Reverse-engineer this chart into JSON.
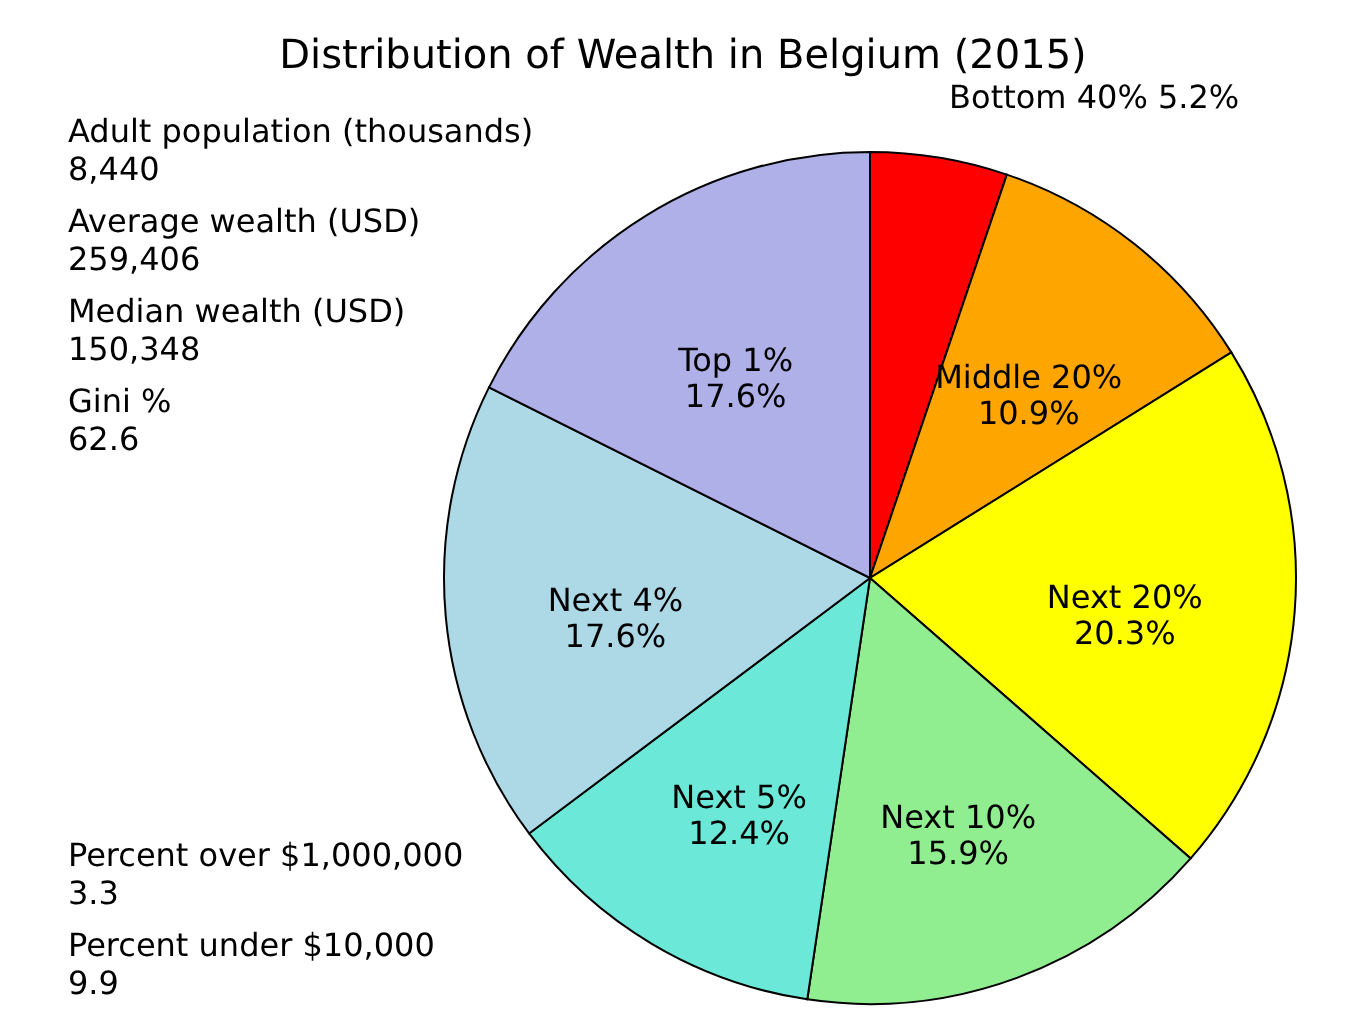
{
  "chart_data": {
    "type": "pie",
    "title": "Distribution of Wealth in Belgium (2015)",
    "categories": [
      "Bottom 40%",
      "Middle 20%",
      "Next 20%",
      "Next 10%",
      "Next 5%",
      "Next 4%",
      "Top 1%"
    ],
    "values": [
      5.2,
      10.9,
      20.3,
      15.9,
      12.4,
      17.6,
      17.6
    ],
    "value_labels": [
      "5.2%",
      "10.9%",
      "20.3%",
      "15.9%",
      "12.4%",
      "17.6%",
      "17.6%"
    ],
    "colors": [
      "#ff0000",
      "#ffa500",
      "#ffff00",
      "#90ee90",
      "#6be8d8",
      "#add8e6",
      "#b0b0e8"
    ],
    "annotations": [
      "Adult population (thousands)\n8,440",
      "Average wealth (USD)\n259,406",
      "Median wealth (USD)\n150,348",
      "Gini %\n62.6",
      "Percent over $1,000,000\n3.3",
      "Percent under $10,000\n9.9"
    ]
  }
}
